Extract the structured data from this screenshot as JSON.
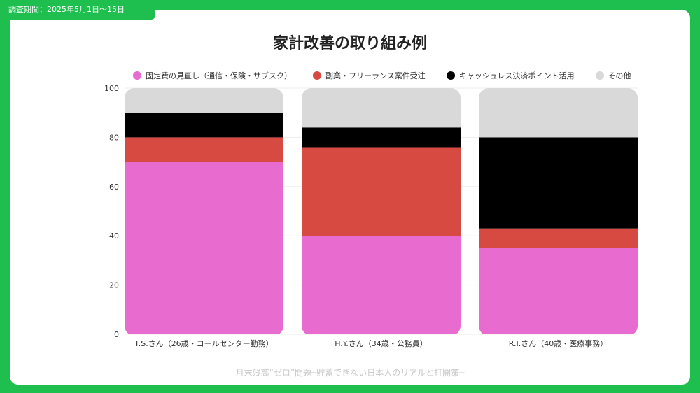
{
  "header": {
    "survey_period": "調査期間：2025年5月1日〜15日"
  },
  "footer": {
    "source": "月末残高“ゼロ”問題─貯蓄できない日本人のリアルと打開策─"
  },
  "chart_data": {
    "type": "bar",
    "stacked": true,
    "title": "家計改善の取り組み例",
    "xlabel": "",
    "ylabel": "",
    "ylim": [
      0,
      100
    ],
    "yticks": [
      0,
      20,
      40,
      60,
      80,
      100
    ],
    "grid": true,
    "legend_position": "top",
    "categories": [
      "T.S.さん（26歳・コールセンター勤務）",
      "H.Y.さん（34歳・公務員）",
      "R.I.さん（40歳・医療事務）"
    ],
    "series": [
      {
        "name": "固定費の見直し（通信・保険・サブスク）",
        "color": "#e86bcf",
        "values": [
          70,
          40,
          35
        ]
      },
      {
        "name": "副業・フリーランス案件受注",
        "color": "#d64a42",
        "values": [
          10,
          36,
          8
        ]
      },
      {
        "name": "キャッシュレス決済ポイント活用",
        "color": "#000000",
        "values": [
          10,
          8,
          37
        ]
      },
      {
        "name": "その他",
        "color": "#d9d9d9",
        "values": [
          10,
          16,
          20
        ]
      }
    ]
  }
}
